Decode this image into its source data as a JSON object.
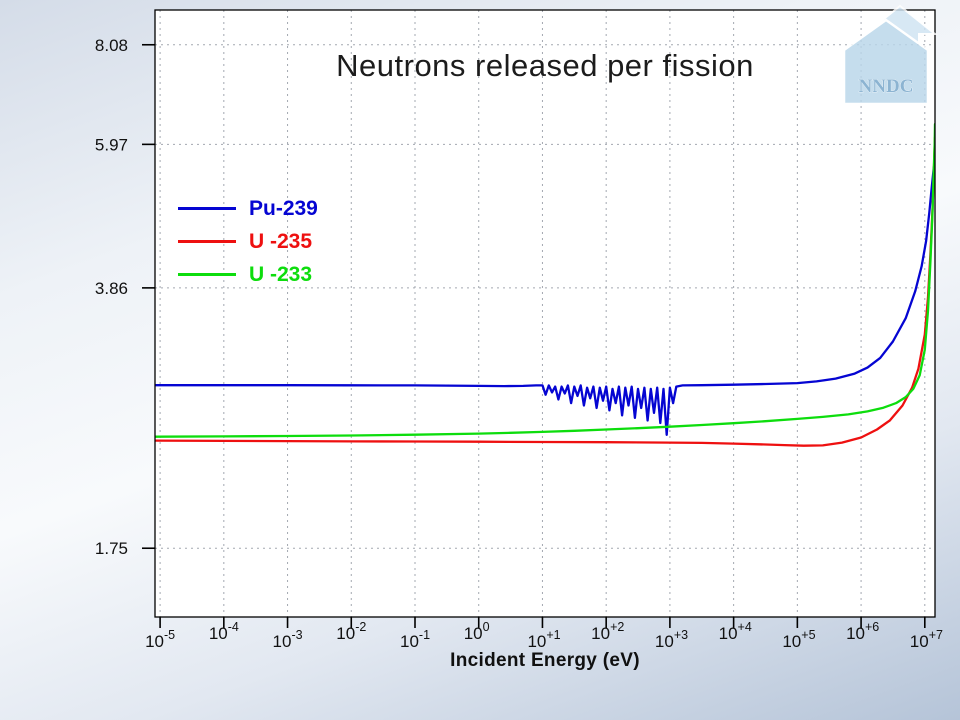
{
  "logo": {
    "text": "NNDC"
  },
  "chart_data": {
    "type": "line",
    "title": "Neutrons released per fission",
    "xlabel": "Incident Energy (eV)",
    "ylabel": "",
    "x_scale": "log",
    "y_scale": "log",
    "xlim_log10": [
      -5.08,
      7.16
    ],
    "ylim": [
      1.42,
      8.98
    ],
    "grid": true,
    "legend_position": "upper-left-inside",
    "x_tick_base": "10",
    "x_ticks": [
      {
        "exp": -5,
        "label": "-5"
      },
      {
        "exp": -4,
        "label": "-4"
      },
      {
        "exp": -3,
        "label": "-3"
      },
      {
        "exp": -2,
        "label": "-2"
      },
      {
        "exp": -1,
        "label": "-1"
      },
      {
        "exp": 0,
        "label": "0"
      },
      {
        "exp": 1,
        "label": "+1"
      },
      {
        "exp": 2,
        "label": "+2"
      },
      {
        "exp": 3,
        "label": "+3"
      },
      {
        "exp": 4,
        "label": "+4"
      },
      {
        "exp": 5,
        "label": "+5"
      },
      {
        "exp": 6,
        "label": "+6"
      },
      {
        "exp": 7,
        "label": "+7"
      }
    ],
    "y_ticks": [
      1.75,
      3.86,
      5.97,
      8.08
    ],
    "series": [
      {
        "name": "Pu-239",
        "color": "#0505d2",
        "points": [
          [
            -5.08,
            2.872
          ],
          [
            -4,
            2.872
          ],
          [
            -3,
            2.872
          ],
          [
            -2,
            2.871
          ],
          [
            -1,
            2.87
          ],
          [
            -0.5,
            2.868
          ],
          [
            0,
            2.866
          ],
          [
            0.4,
            2.864
          ],
          [
            0.7,
            2.866
          ],
          [
            0.9,
            2.87
          ],
          [
            1.0,
            2.87
          ],
          [
            1.05,
            2.79
          ],
          [
            1.1,
            2.87
          ],
          [
            1.15,
            2.81
          ],
          [
            1.2,
            2.86
          ],
          [
            1.25,
            2.75
          ],
          [
            1.3,
            2.86
          ],
          [
            1.35,
            2.8
          ],
          [
            1.4,
            2.87
          ],
          [
            1.45,
            2.72
          ],
          [
            1.5,
            2.86
          ],
          [
            1.55,
            2.78
          ],
          [
            1.6,
            2.87
          ],
          [
            1.65,
            2.7
          ],
          [
            1.7,
            2.85
          ],
          [
            1.75,
            2.76
          ],
          [
            1.8,
            2.86
          ],
          [
            1.85,
            2.68
          ],
          [
            1.9,
            2.85
          ],
          [
            1.95,
            2.74
          ],
          [
            2.0,
            2.86
          ],
          [
            2.05,
            2.66
          ],
          [
            2.1,
            2.84
          ],
          [
            2.15,
            2.72
          ],
          [
            2.2,
            2.86
          ],
          [
            2.25,
            2.62
          ],
          [
            2.3,
            2.85
          ],
          [
            2.35,
            2.7
          ],
          [
            2.4,
            2.86
          ],
          [
            2.45,
            2.6
          ],
          [
            2.5,
            2.84
          ],
          [
            2.55,
            2.68
          ],
          [
            2.6,
            2.85
          ],
          [
            2.65,
            2.58
          ],
          [
            2.7,
            2.84
          ],
          [
            2.75,
            2.64
          ],
          [
            2.8,
            2.85
          ],
          [
            2.85,
            2.56
          ],
          [
            2.9,
            2.84
          ],
          [
            2.95,
            2.47
          ],
          [
            3.0,
            2.85
          ],
          [
            3.05,
            2.72
          ],
          [
            3.1,
            2.86
          ],
          [
            3.2,
            2.87
          ],
          [
            3.5,
            2.872
          ],
          [
            4,
            2.876
          ],
          [
            4.5,
            2.882
          ],
          [
            5,
            2.89
          ],
          [
            5.3,
            2.905
          ],
          [
            5.6,
            2.93
          ],
          [
            5.9,
            2.975
          ],
          [
            6.1,
            3.03
          ],
          [
            6.3,
            3.12
          ],
          [
            6.5,
            3.28
          ],
          [
            6.7,
            3.52
          ],
          [
            6.85,
            3.82
          ],
          [
            6.95,
            4.12
          ],
          [
            7.02,
            4.45
          ],
          [
            7.07,
            4.85
          ],
          [
            7.11,
            5.25
          ],
          [
            7.14,
            5.55
          ],
          [
            7.16,
            5.68
          ]
        ]
      },
      {
        "name": "U -235",
        "color": "#ee1010",
        "points": [
          [
            -5.08,
            2.427
          ],
          [
            -4,
            2.425
          ],
          [
            -3,
            2.423
          ],
          [
            -2,
            2.421
          ],
          [
            -1,
            2.42
          ],
          [
            0,
            2.419
          ],
          [
            1,
            2.417
          ],
          [
            2,
            2.415
          ],
          [
            3,
            2.412
          ],
          [
            3.5,
            2.41
          ],
          [
            4,
            2.405
          ],
          [
            4.4,
            2.4
          ],
          [
            4.8,
            2.394
          ],
          [
            5.1,
            2.39
          ],
          [
            5.4,
            2.392
          ],
          [
            5.7,
            2.412
          ],
          [
            6.0,
            2.45
          ],
          [
            6.25,
            2.51
          ],
          [
            6.45,
            2.58
          ],
          [
            6.65,
            2.7
          ],
          [
            6.8,
            2.85
          ],
          [
            6.9,
            3.02
          ],
          [
            7.0,
            3.35
          ],
          [
            7.05,
            3.75
          ],
          [
            7.09,
            4.3
          ],
          [
            7.12,
            4.9
          ],
          [
            7.14,
            5.4
          ],
          [
            7.15,
            5.8
          ],
          [
            7.16,
            6.1
          ]
        ]
      },
      {
        "name": "U -233",
        "color": "#0ddd0d",
        "points": [
          [
            -5.08,
            2.456
          ],
          [
            -4,
            2.458
          ],
          [
            -3,
            2.461
          ],
          [
            -2,
            2.465
          ],
          [
            -1,
            2.471
          ],
          [
            0,
            2.479
          ],
          [
            0.5,
            2.485
          ],
          [
            1,
            2.492
          ],
          [
            1.5,
            2.5
          ],
          [
            2,
            2.51
          ],
          [
            2.5,
            2.52
          ],
          [
            3,
            2.532
          ],
          [
            3.5,
            2.545
          ],
          [
            4,
            2.559
          ],
          [
            4.5,
            2.574
          ],
          [
            5,
            2.592
          ],
          [
            5.4,
            2.608
          ],
          [
            5.8,
            2.628
          ],
          [
            6.1,
            2.652
          ],
          [
            6.35,
            2.682
          ],
          [
            6.55,
            2.72
          ],
          [
            6.7,
            2.77
          ],
          [
            6.82,
            2.84
          ],
          [
            6.92,
            2.96
          ],
          [
            7.0,
            3.2
          ],
          [
            7.05,
            3.6
          ],
          [
            7.09,
            4.2
          ],
          [
            7.12,
            4.85
          ],
          [
            7.14,
            5.5
          ],
          [
            7.155,
            6.0
          ],
          [
            7.16,
            6.35
          ]
        ]
      }
    ]
  }
}
